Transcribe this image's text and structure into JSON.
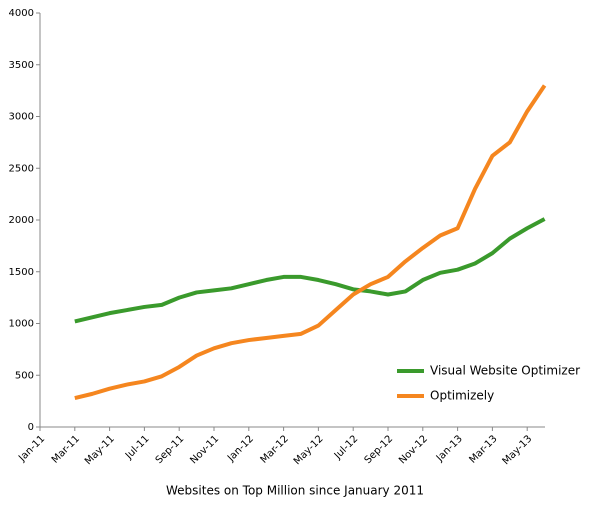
{
  "chart_data": {
    "type": "line",
    "x_label": "Websites on Top Million since January 2011",
    "categories": [
      "Jan-11",
      null,
      "Mar-11",
      null,
      "May-11",
      null,
      "Jul-11",
      null,
      "Sep-11",
      null,
      "Nov-11",
      null,
      "Jan-12",
      null,
      "Mar-12",
      null,
      "May-12",
      null,
      "Jul-12",
      null,
      "Sep-12",
      null,
      "Nov-12",
      null,
      "Jan-13",
      null,
      "Mar-13",
      null,
      "May-13",
      null
    ],
    "series": [
      {
        "name": "Visual Website Optimizer",
        "color": "#3a9a2c",
        "values": [
          null,
          null,
          1020,
          1060,
          1100,
          1130,
          1160,
          1180,
          1250,
          1300,
          1320,
          1340,
          1380,
          1420,
          1450,
          1450,
          1420,
          1380,
          1330,
          1310,
          1280,
          1310,
          1420,
          1490,
          1520,
          1580,
          1680,
          1820,
          1920,
          2010
        ]
      },
      {
        "name": "Optimizely",
        "color": "#f5861f",
        "values": [
          null,
          null,
          280,
          320,
          370,
          410,
          440,
          490,
          580,
          690,
          760,
          810,
          840,
          860,
          880,
          900,
          980,
          1130,
          1280,
          1380,
          1450,
          1600,
          1730,
          1850,
          1920,
          2300,
          2620,
          2750,
          3050,
          3300
        ]
      }
    ],
    "ylim": [
      0,
      4000
    ],
    "yticks": [
      0,
      500,
      1000,
      1500,
      2000,
      2500,
      3000,
      3500,
      4000
    ],
    "grid": false
  }
}
